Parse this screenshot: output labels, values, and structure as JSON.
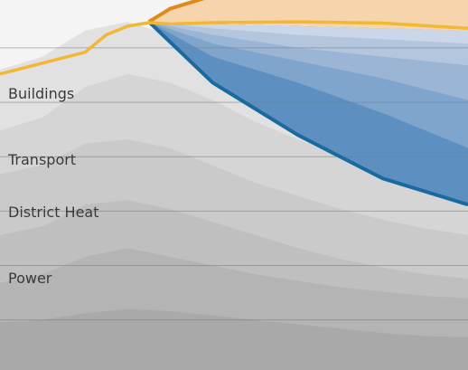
{
  "chart_data": {
    "type": "area",
    "labels": [
      "Buildings",
      "Transport",
      "District Heat",
      "Power"
    ],
    "colors": {
      "background": "#f4f4f4",
      "gridline": "#6f7f8c",
      "orange_line": "#e08a1a",
      "yellow_line": "#f2b733",
      "blue_edge": "#1a6aa0",
      "orange_fill": "#f6d4ac"
    },
    "x": [
      0,
      1,
      2,
      3,
      4,
      5,
      6,
      7,
      8,
      9,
      10,
      11
    ],
    "series": [
      {
        "values": [
          11,
          11.5,
          13,
          14,
          13.5,
          12.5,
          11.5,
          10.5,
          9.5,
          8.5,
          7.8,
          7.5
        ]
      },
      {
        "values": [
          20,
          22,
          26,
          28,
          26,
          24,
          22,
          20.5,
          19,
          18,
          17,
          16.5
        ]
      },
      {
        "values": [
          31,
          33,
          38,
          39,
          37,
          34,
          31,
          28,
          25.5,
          23.5,
          22,
          21
        ]
      },
      {
        "values": [
          45,
          47,
          52,
          53,
          51,
          47,
          43,
          40,
          37,
          34.5,
          32.5,
          31
        ]
      },
      {
        "values": [
          55,
          58,
          65,
          68,
          66,
          62,
          57,
          53,
          49,
          46,
          43.5,
          42
        ]
      },
      {
        "values": [
          69,
          72,
          78,
          80,
          77,
          72,
          67,
          62,
          58,
          54,
          51,
          49
        ]
      }
    ],
    "reduction_bands": {
      "x": [
        3.5,
        5,
        7,
        9,
        11
      ],
      "bottoms": [
        [
          80,
          66,
          54,
          44,
          38
        ],
        [
          80,
          72,
          66,
          59,
          51
        ],
        [
          80,
          75,
          71,
          67,
          62
        ],
        [
          80,
          77,
          74,
          72,
          70
        ],
        [
          80,
          78.5,
          77,
          76,
          75
        ]
      ],
      "top": [
        80,
        79.5,
        79,
        78.5,
        78
      ]
    },
    "yellow_line": {
      "x": [
        0,
        2,
        2.5,
        3,
        3.5,
        4,
        5,
        7,
        9,
        11
      ],
      "values": [
        68,
        73,
        77,
        79,
        79.8,
        79.5,
        79.8,
        80,
        79.7,
        78.5
      ]
    },
    "orange_line": {
      "x": [
        3.5,
        4,
        5,
        6,
        7
      ],
      "values": [
        80,
        83,
        86,
        87.5,
        88.5
      ]
    },
    "ylim": [
      0,
      85
    ],
    "gridlines": [
      11.5,
      24,
      36.5,
      49,
      61.5,
      74,
      86.5
    ],
    "grid": true
  }
}
